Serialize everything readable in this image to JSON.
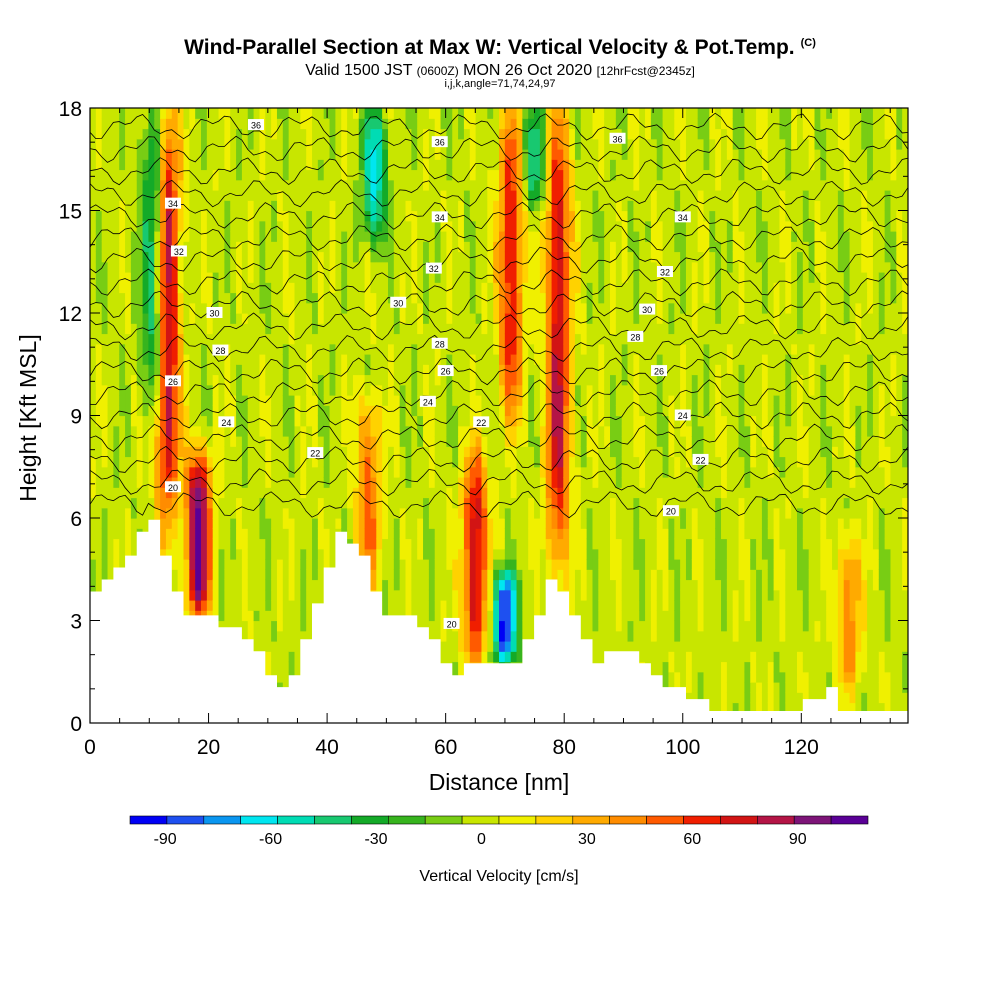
{
  "title": {
    "main": "Wind-Parallel Section at Max W: Vertical Velocity & Pot.Temp.",
    "copyright": "(C)",
    "valid_prefix": "Valid 1500 JST",
    "utc": "(0600Z)",
    "date": "MON 26 Oct 2020",
    "fcst": "[12hrFcst@2345z]",
    "ijk": "i,j,k,angle=71,74,24,97"
  },
  "chart_data": {
    "type": "heatmap",
    "xlabel": "Distance [nm]",
    "ylabel": "Height [Kft MSL]",
    "xlim": [
      0,
      138
    ],
    "ylim": [
      0,
      18
    ],
    "xticks": [
      0,
      20,
      40,
      60,
      80,
      100,
      120
    ],
    "yticks": [
      0,
      3,
      6,
      9,
      12,
      15,
      18
    ],
    "colorbar": {
      "label": "Vertical Velocity [cm/s]",
      "ticks": [
        -90,
        -60,
        -30,
        0,
        30,
        60,
        90
      ],
      "range": [
        -100,
        110
      ],
      "colors": [
        "#0000f5",
        "#1e50f0",
        "#0a96f0",
        "#00e6f0",
        "#00dcb4",
        "#18c870",
        "#14aa28",
        "#37b41e",
        "#78cd14",
        "#c8e600",
        "#f0f000",
        "#ffd200",
        "#ffaa00",
        "#ff8c00",
        "#ff5a00",
        "#f01e00",
        "#d21414",
        "#b41446",
        "#7d1478",
        "#5a0096"
      ]
    },
    "terrain_kft": [
      {
        "x": 0,
        "z": 3.6
      },
      {
        "x": 8,
        "z": 5.2
      },
      {
        "x": 10,
        "z": 6.2
      },
      {
        "x": 14,
        "z": 4.5
      },
      {
        "x": 16,
        "z": 3.0
      },
      {
        "x": 20,
        "z": 3.0
      },
      {
        "x": 26,
        "z": 2.8
      },
      {
        "x": 30,
        "z": 1.6
      },
      {
        "x": 33,
        "z": 1.0
      },
      {
        "x": 37,
        "z": 2.5
      },
      {
        "x": 42,
        "z": 5.6
      },
      {
        "x": 46,
        "z": 5.0
      },
      {
        "x": 50,
        "z": 3.3
      },
      {
        "x": 56,
        "z": 3.0
      },
      {
        "x": 61,
        "z": 1.5
      },
      {
        "x": 66,
        "z": 1.7
      },
      {
        "x": 71,
        "z": 1.7
      },
      {
        "x": 75,
        "z": 2.5
      },
      {
        "x": 78,
        "z": 4.3
      },
      {
        "x": 82,
        "z": 3.0
      },
      {
        "x": 86,
        "z": 1.8
      },
      {
        "x": 90,
        "z": 2.3
      },
      {
        "x": 96,
        "z": 1.2
      },
      {
        "x": 104,
        "z": 0.5
      },
      {
        "x": 109,
        "z": 0.3
      },
      {
        "x": 118,
        "z": 0.3
      },
      {
        "x": 125,
        "z": 1.0
      },
      {
        "x": 128,
        "z": 0.3
      },
      {
        "x": 138,
        "z": 0.3
      }
    ],
    "updrafts": [
      {
        "x": 13,
        "z_bottom": 6,
        "z_top": 18,
        "w": 95
      },
      {
        "x": 18.3,
        "z_bottom": 3,
        "z_top": 8,
        "w": 105
      },
      {
        "x": 47,
        "z_bottom": 4,
        "z_top": 9.5,
        "w": 50
      },
      {
        "x": 65,
        "z_bottom": 1.7,
        "z_top": 8,
        "w": 80
      },
      {
        "x": 71,
        "z_bottom": 9,
        "z_top": 18,
        "w": 70
      },
      {
        "x": 79,
        "z_bottom": 4.5,
        "z_top": 18,
        "w": 80
      },
      {
        "x": 128,
        "z_bottom": 1,
        "z_top": 5.5,
        "w": 45
      }
    ],
    "downdrafts": [
      {
        "x": 11,
        "z_bottom": 9,
        "z_top": 18,
        "w": -60
      },
      {
        "x": 70,
        "z_bottom": 1.7,
        "z_top": 4.5,
        "w": -95
      },
      {
        "x": 48,
        "z_bottom": 14,
        "z_top": 18,
        "w": -60
      },
      {
        "x": 75,
        "z_bottom": 15,
        "z_top": 18,
        "w": -45
      }
    ],
    "theta_contours": {
      "label_values": [
        "20",
        "22",
        "24",
        "26",
        "28",
        "30",
        "32",
        "34",
        "36"
      ],
      "labels": [
        {
          "text": "36",
          "x": 28,
          "z": 17.5
        },
        {
          "text": "36",
          "x": 59,
          "z": 17.0
        },
        {
          "text": "36",
          "x": 89,
          "z": 17.1
        },
        {
          "text": "34",
          "x": 14,
          "z": 15.2
        },
        {
          "text": "34",
          "x": 59,
          "z": 14.8
        },
        {
          "text": "34",
          "x": 100,
          "z": 14.8
        },
        {
          "text": "32",
          "x": 15,
          "z": 13.8
        },
        {
          "text": "32",
          "x": 58,
          "z": 13.3
        },
        {
          "text": "32",
          "x": 97,
          "z": 13.2
        },
        {
          "text": "30",
          "x": 21,
          "z": 12.0
        },
        {
          "text": "30",
          "x": 52,
          "z": 12.3
        },
        {
          "text": "30",
          "x": 94,
          "z": 12.1
        },
        {
          "text": "28",
          "x": 22,
          "z": 10.9
        },
        {
          "text": "28",
          "x": 59,
          "z": 11.1
        },
        {
          "text": "28",
          "x": 92,
          "z": 11.3
        },
        {
          "text": "26",
          "x": 14,
          "z": 10.0
        },
        {
          "text": "26",
          "x": 60,
          "z": 10.3
        },
        {
          "text": "26",
          "x": 96,
          "z": 10.3
        },
        {
          "text": "24",
          "x": 23,
          "z": 8.8
        },
        {
          "text": "24",
          "x": 57,
          "z": 9.4
        },
        {
          "text": "24",
          "x": 100,
          "z": 9.0
        },
        {
          "text": "22",
          "x": 38,
          "z": 7.9
        },
        {
          "text": "22",
          "x": 66,
          "z": 8.8
        },
        {
          "text": "22",
          "x": 103,
          "z": 7.7
        },
        {
          "text": "20",
          "x": 14,
          "z": 6.9
        },
        {
          "text": "20",
          "x": 98,
          "z": 6.2
        },
        {
          "text": "20",
          "x": 61,
          "z": 2.9
        }
      ]
    }
  }
}
